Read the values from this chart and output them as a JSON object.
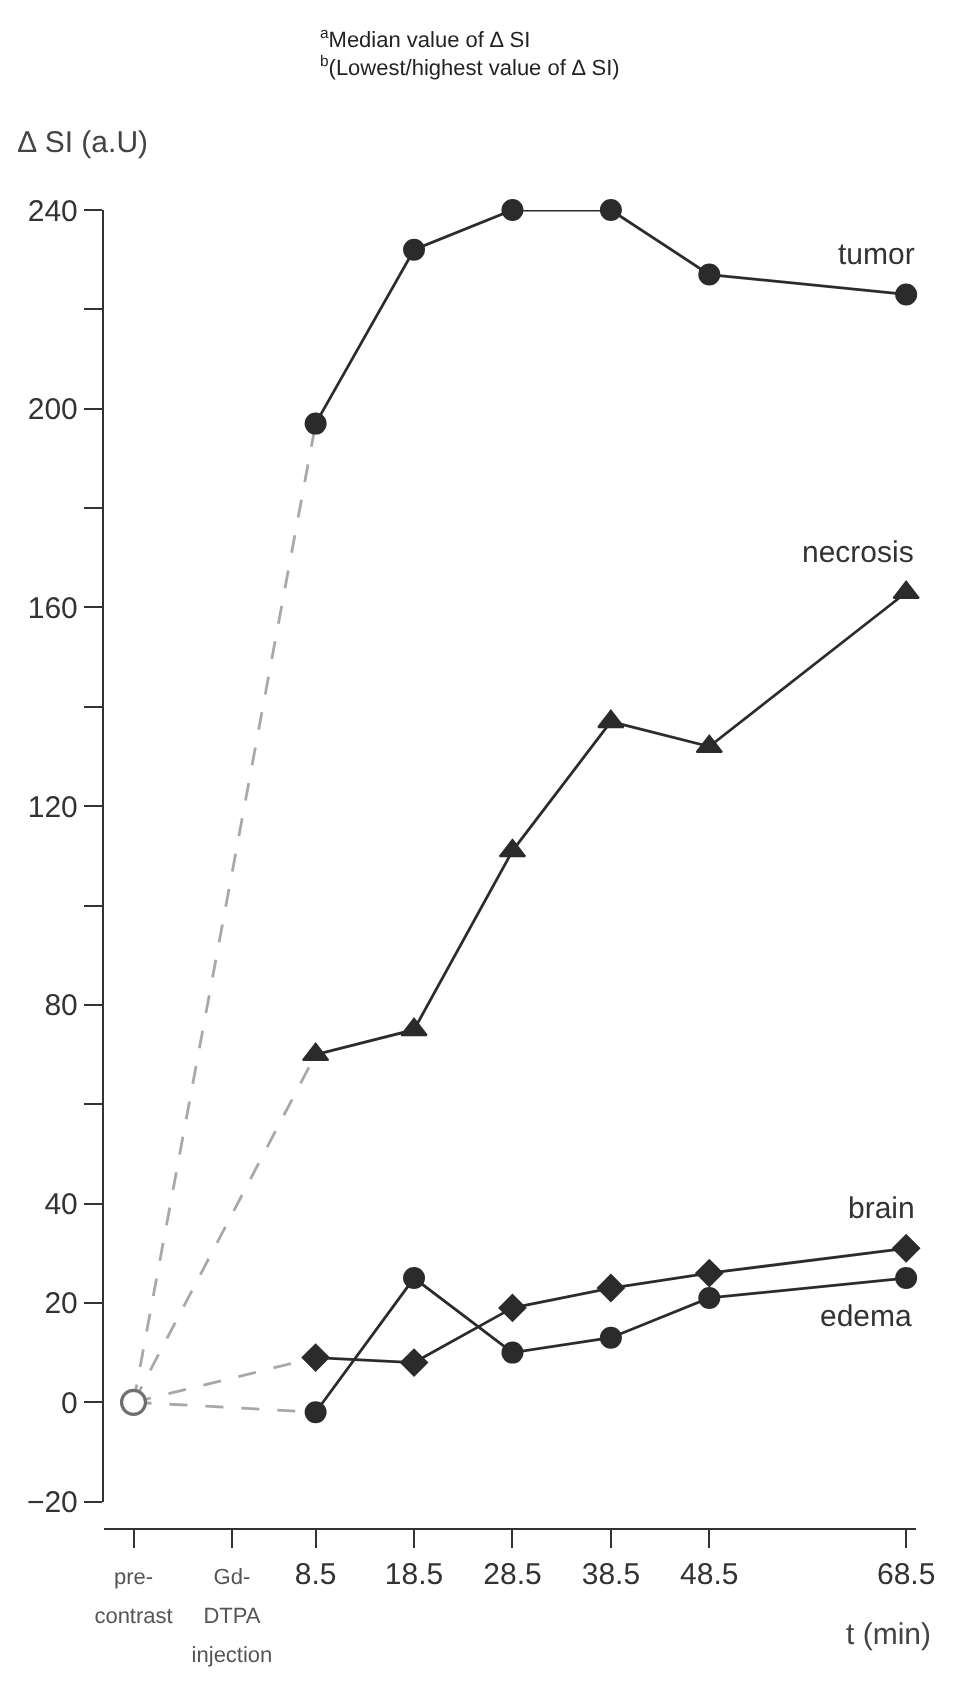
{
  "chart_data": {
    "type": "line",
    "ylabel": "∆ SI (a.U)",
    "xlabel": "t (min)",
    "annotations": [
      "$^{a}$Median value of ∆ SI",
      "$^{b}$(Lowest/highest value of ∆ SI)"
    ],
    "xlim": [
      -13,
      69.5
    ],
    "xticks": [
      {
        "value": -10,
        "label": "pre-contrast"
      },
      {
        "value": 0,
        "label": "Gd-DTPA injection"
      },
      8.5,
      18.5,
      28.5,
      38.5,
      48.5,
      68.5
    ],
    "ylim": [
      -20,
      240
    ],
    "yticks": [
      -20,
      0,
      20,
      40,
      {
        "value": 60,
        "label": null
      },
      80,
      {
        "value": 100,
        "label": null
      },
      120,
      {
        "value": 140,
        "label": null
      },
      160,
      {
        "value": 180,
        "label": null
      },
      200,
      {
        "value": 220,
        "label": null
      },
      240
    ],
    "grid": false,
    "legend": false,
    "series": [
      {
        "color": "#a8a8a8",
        "line_style": "dashed",
        "marker": "none",
        "x": [
          -10,
          8.5
        ],
        "values": [
          0,
          197
        ]
      },
      {
        "color": "#a8a8a8",
        "line_style": "dashed",
        "marker": "none",
        "x": [
          -10,
          8.5
        ],
        "values": [
          0,
          70
        ]
      },
      {
        "color": "#a8a8a8",
        "line_style": "dashed",
        "marker": "none",
        "x": [
          -10,
          8.5
        ],
        "values": [
          0,
          9
        ]
      },
      {
        "color": "#a8a8a8",
        "line_style": "dashed",
        "marker": "none",
        "x": [
          -10,
          8.5
        ],
        "values": [
          0,
          -2
        ]
      },
      {
        "type": "scatter",
        "color": "#707070",
        "marker": "circle",
        "x": [
          -10
        ],
        "values": [
          0
        ]
      },
      {
        "name": "tumor",
        "color": "#2b2b2b",
        "marker": "circle",
        "line_style": "solid",
        "x": [
          8.5,
          18.5,
          28.5,
          38.5,
          48.5,
          68.5
        ],
        "values": [
          197,
          232,
          240,
          240,
          227,
          223
        ]
      },
      {
        "name": "necrosis",
        "color": "#2b2b2b",
        "marker": "triangle",
        "line_style": "solid",
        "x": [
          8.5,
          18.5,
          28.5,
          38.5,
          48.5,
          68.5
        ],
        "values": [
          70,
          75,
          111,
          137,
          132,
          163
        ]
      },
      {
        "name": "brain",
        "color": "#2b2b2b",
        "marker": "diamond",
        "line_style": "solid",
        "x": [
          8.5,
          18.5,
          28.5,
          38.5,
          48.5,
          68.5
        ],
        "values": [
          9,
          8,
          19,
          23,
          26,
          31
        ]
      },
      {
        "name": "edema",
        "color": "#2b2b2b",
        "marker": "circle",
        "line_style": "solid",
        "x": [
          8.5,
          18.5,
          28.5,
          38.5,
          48.5,
          68.5
        ],
        "values": [
          -2,
          25,
          10,
          13,
          21,
          25
        ]
      }
    ]
  }
}
